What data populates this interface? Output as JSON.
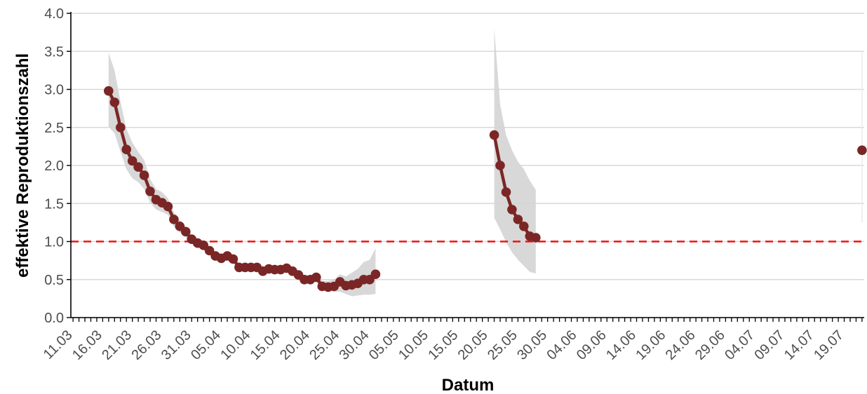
{
  "colors": {
    "line": "#7b2626",
    "band": "#d4d4d4",
    "threshold": "#ee1111",
    "grid": "#d9d9d9",
    "axis": "#000000"
  },
  "chart_data": {
    "type": "line",
    "title": "",
    "xlabel": "Datum",
    "ylabel": "effektive Reproduktionszahl",
    "ylim": [
      0,
      4
    ],
    "yticks": [
      "0.0",
      "0.5",
      "1.0",
      "1.5",
      "2.0",
      "2.5",
      "3.0",
      "3.5",
      "4.0"
    ],
    "x_start_date": "2020-03-11",
    "x_end_date": "2020-07-22",
    "xtick_labels": [
      "11.03",
      "16.03",
      "21.03",
      "26.03",
      "31.03",
      "05.04",
      "10.04",
      "15.04",
      "20.04",
      "25.04",
      "30.04",
      "05.05",
      "10.05",
      "15.05",
      "20.05",
      "25.05",
      "30.05",
      "04.06",
      "09.06",
      "14.06",
      "19.06",
      "24.06",
      "29.06",
      "04.07",
      "09.07",
      "14.07",
      "19.07"
    ],
    "threshold": 1.0,
    "grid": true,
    "legend": "none",
    "series": [
      {
        "x": [
          "2020-03-17",
          "2020-03-18",
          "2020-03-19",
          "2020-03-20",
          "2020-03-21",
          "2020-03-22",
          "2020-03-23",
          "2020-03-24",
          "2020-03-25",
          "2020-03-26",
          "2020-03-27",
          "2020-03-28",
          "2020-03-29",
          "2020-03-30",
          "2020-03-31",
          "2020-04-01",
          "2020-04-02",
          "2020-04-03",
          "2020-04-04",
          "2020-04-05",
          "2020-04-06",
          "2020-04-07",
          "2020-04-08",
          "2020-04-09",
          "2020-04-10",
          "2020-04-11",
          "2020-04-12",
          "2020-04-13",
          "2020-04-14",
          "2020-04-15",
          "2020-04-16",
          "2020-04-17",
          "2020-04-18",
          "2020-04-19",
          "2020-04-20",
          "2020-04-21",
          "2020-04-22",
          "2020-04-23",
          "2020-04-24",
          "2020-04-25",
          "2020-04-26",
          "2020-04-27",
          "2020-04-28",
          "2020-04-29",
          "2020-04-30",
          "2020-05-01"
        ],
        "y": [
          2.98,
          2.83,
          2.5,
          2.21,
          2.06,
          1.98,
          1.87,
          1.66,
          1.55,
          1.51,
          1.46,
          1.29,
          1.2,
          1.13,
          1.03,
          0.98,
          0.95,
          0.88,
          0.81,
          0.78,
          0.81,
          0.77,
          0.66,
          0.66,
          0.66,
          0.66,
          0.61,
          0.64,
          0.63,
          0.63,
          0.65,
          0.61,
          0.56,
          0.5,
          0.5,
          0.53,
          0.41,
          0.4,
          0.41,
          0.47,
          0.42,
          0.43,
          0.45,
          0.5,
          0.5,
          0.57
        ],
        "lower": [
          2.51,
          2.42,
          2.18,
          1.95,
          1.83,
          1.78,
          1.69,
          1.51,
          1.42,
          1.39,
          1.35,
          1.2,
          1.12,
          1.06,
          0.97,
          0.92,
          0.89,
          0.83,
          0.76,
          0.73,
          0.76,
          0.72,
          0.61,
          0.61,
          0.61,
          0.61,
          0.56,
          0.59,
          0.58,
          0.58,
          0.6,
          0.56,
          0.51,
          0.45,
          0.45,
          0.47,
          0.36,
          0.35,
          0.34,
          0.34,
          0.31,
          0.28,
          0.29,
          0.3,
          0.3,
          0.31
        ],
        "upper": [
          3.48,
          3.25,
          2.84,
          2.48,
          2.3,
          2.18,
          2.07,
          1.82,
          1.69,
          1.65,
          1.57,
          1.39,
          1.28,
          1.2,
          1.09,
          1.03,
          1.01,
          0.93,
          0.86,
          0.83,
          0.86,
          0.82,
          0.71,
          0.71,
          0.71,
          0.71,
          0.66,
          0.69,
          0.68,
          0.68,
          0.7,
          0.66,
          0.61,
          0.55,
          0.55,
          0.59,
          0.48,
          0.48,
          0.5,
          0.57,
          0.54,
          0.59,
          0.64,
          0.73,
          0.76,
          0.91
        ]
      },
      {
        "x": [
          "2020-05-21",
          "2020-05-22",
          "2020-05-23",
          "2020-05-24",
          "2020-05-25",
          "2020-05-26",
          "2020-05-27",
          "2020-05-28"
        ],
        "y": [
          2.4,
          2.0,
          1.65,
          1.42,
          1.29,
          1.2,
          1.07,
          1.05
        ],
        "lower": [
          1.31,
          1.16,
          0.99,
          0.86,
          0.76,
          0.68,
          0.6,
          0.58
        ],
        "upper": [
          3.8,
          2.8,
          2.4,
          2.2,
          2.05,
          1.95,
          1.8,
          1.68
        ]
      },
      {
        "x": [
          "2020-07-22"
        ],
        "y": [
          2.2
        ],
        "lower": [
          1.25
        ],
        "upper": [
          3.5
        ]
      }
    ]
  }
}
